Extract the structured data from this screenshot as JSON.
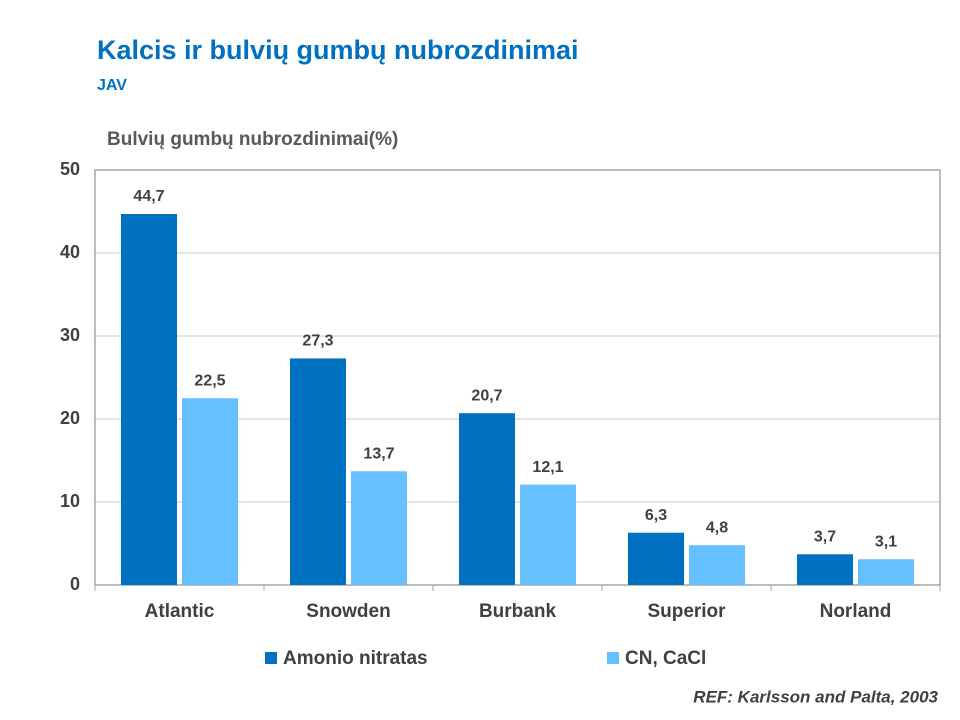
{
  "chart_data": {
    "type": "bar",
    "title": "Kalcis ir bulvių gumbų nubrozdinimai",
    "subtitle": "JAV",
    "y_label": "Bulvių gumbų nubrozdinimai(%)",
    "categories": [
      "Atlantic",
      "Snowden",
      "Burbank",
      "Superior",
      "Norland"
    ],
    "series": [
      {
        "name": "Amonio nitratas",
        "color": "#0070c0",
        "values": [
          44.7,
          27.3,
          20.7,
          6.3,
          3.7
        ],
        "value_labels": [
          "44,7",
          "27,3",
          "20,7",
          "6,3",
          "3,7"
        ]
      },
      {
        "name": "CN, CaCl",
        "color": "#66bfff",
        "values": [
          22.5,
          13.7,
          12.1,
          4.8,
          3.1
        ],
        "value_labels": [
          "22,5",
          "13,7",
          "12,1",
          "4,8",
          "3,1"
        ]
      }
    ],
    "ylim": [
      0,
      50
    ],
    "yticks": [
      0,
      10,
      20,
      30,
      40,
      50
    ],
    "grid": true,
    "annotation": "REF: Karlsson and Palta, 2003"
  }
}
